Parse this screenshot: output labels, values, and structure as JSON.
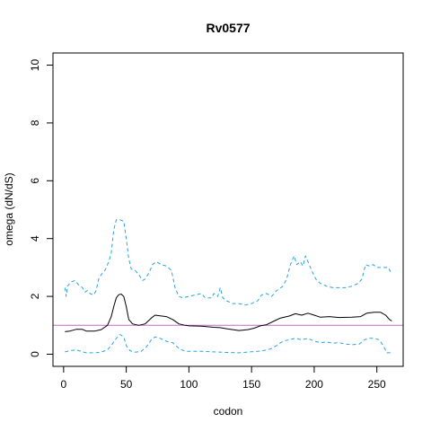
{
  "chart_data": {
    "type": "line",
    "title": "Rv0577",
    "xlabel": "codon",
    "ylabel": "omega (dN/dS)",
    "xlim": [
      -8.5,
      271
    ],
    "ylim": [
      -0.42,
      10.42
    ],
    "xticks": [
      0,
      50,
      100,
      150,
      200,
      250
    ],
    "yticks": [
      0,
      2,
      4,
      6,
      8,
      10
    ],
    "grid": false,
    "reference_line": {
      "y": 1,
      "color": "#cc66cc"
    },
    "colors": {
      "omega": "#000000",
      "bounds": "#29a3dd",
      "reference": "#cc66cc"
    },
    "series": [
      {
        "style": "solid",
        "color": "#000000",
        "points": [
          [
            1,
            0.78
          ],
          [
            5,
            0.8
          ],
          [
            10,
            0.86
          ],
          [
            15,
            0.86
          ],
          [
            18,
            0.8
          ],
          [
            25,
            0.8
          ],
          [
            30,
            0.85
          ],
          [
            35,
            1.0
          ],
          [
            38,
            1.3
          ],
          [
            40,
            1.65
          ],
          [
            42,
            1.95
          ],
          [
            44,
            2.06
          ],
          [
            46,
            2.08
          ],
          [
            48,
            2.0
          ],
          [
            50,
            1.65
          ],
          [
            52,
            1.2
          ],
          [
            55,
            1.05
          ],
          [
            60,
            1.0
          ],
          [
            65,
            1.05
          ],
          [
            70,
            1.25
          ],
          [
            73,
            1.35
          ],
          [
            77,
            1.33
          ],
          [
            82,
            1.3
          ],
          [
            87,
            1.2
          ],
          [
            92,
            1.05
          ],
          [
            97,
            1.0
          ],
          [
            100,
            0.98
          ],
          [
            110,
            0.97
          ],
          [
            120,
            0.93
          ],
          [
            125,
            0.92
          ],
          [
            130,
            0.88
          ],
          [
            135,
            0.85
          ],
          [
            140,
            0.82
          ],
          [
            147,
            0.85
          ],
          [
            152,
            0.9
          ],
          [
            157,
            0.98
          ],
          [
            162,
            1.02
          ],
          [
            168,
            1.15
          ],
          [
            173,
            1.25
          ],
          [
            180,
            1.32
          ],
          [
            185,
            1.4
          ],
          [
            190,
            1.35
          ],
          [
            195,
            1.42
          ],
          [
            200,
            1.35
          ],
          [
            205,
            1.28
          ],
          [
            212,
            1.3
          ],
          [
            220,
            1.27
          ],
          [
            230,
            1.28
          ],
          [
            237,
            1.3
          ],
          [
            242,
            1.42
          ],
          [
            248,
            1.45
          ],
          [
            253,
            1.45
          ],
          [
            257,
            1.35
          ],
          [
            260,
            1.2
          ],
          [
            262,
            1.15
          ]
        ]
      },
      {
        "style": "dashed",
        "color": "#29a3dd",
        "points": [
          [
            1,
            2.3
          ],
          [
            2,
            2.0
          ],
          [
            3,
            2.35
          ],
          [
            6,
            2.5
          ],
          [
            9,
            2.55
          ],
          [
            12,
            2.4
          ],
          [
            15,
            2.3
          ],
          [
            17,
            2.15
          ],
          [
            19,
            2.2
          ],
          [
            21,
            2.1
          ],
          [
            24,
            2.05
          ],
          [
            26,
            2.2
          ],
          [
            28,
            2.6
          ],
          [
            30,
            2.75
          ],
          [
            33,
            2.9
          ],
          [
            36,
            3.2
          ],
          [
            38,
            3.5
          ],
          [
            40,
            4.3
          ],
          [
            42,
            4.65
          ],
          [
            45,
            4.65
          ],
          [
            48,
            4.6
          ],
          [
            50,
            4.0
          ],
          [
            52,
            3.3
          ],
          [
            54,
            2.95
          ],
          [
            57,
            2.9
          ],
          [
            60,
            2.75
          ],
          [
            63,
            2.55
          ],
          [
            65,
            2.6
          ],
          [
            68,
            2.8
          ],
          [
            71,
            3.1
          ],
          [
            74,
            3.2
          ],
          [
            78,
            3.1
          ],
          [
            82,
            3.05
          ],
          [
            86,
            2.9
          ],
          [
            89,
            2.3
          ],
          [
            92,
            2.0
          ],
          [
            95,
            1.95
          ],
          [
            100,
            2.0
          ],
          [
            105,
            2.05
          ],
          [
            110,
            2.1
          ],
          [
            113,
            1.95
          ],
          [
            118,
            1.95
          ],
          [
            120,
            2.1
          ],
          [
            123,
            2.0
          ],
          [
            125,
            2.3
          ],
          [
            127,
            1.95
          ],
          [
            130,
            1.85
          ],
          [
            135,
            1.75
          ],
          [
            140,
            1.75
          ],
          [
            145,
            1.7
          ],
          [
            150,
            1.75
          ],
          [
            155,
            1.85
          ],
          [
            158,
            2.05
          ],
          [
            162,
            2.1
          ],
          [
            166,
            2.0
          ],
          [
            170,
            2.2
          ],
          [
            175,
            2.35
          ],
          [
            178,
            2.6
          ],
          [
            181,
            3.1
          ],
          [
            184,
            3.4
          ],
          [
            186,
            3.1
          ],
          [
            189,
            3.2
          ],
          [
            191,
            3.05
          ],
          [
            193,
            3.4
          ],
          [
            196,
            3.1
          ],
          [
            199,
            2.8
          ],
          [
            202,
            2.55
          ],
          [
            205,
            2.45
          ],
          [
            210,
            2.35
          ],
          [
            215,
            2.3
          ],
          [
            220,
            2.3
          ],
          [
            225,
            2.3
          ],
          [
            230,
            2.35
          ],
          [
            235,
            2.45
          ],
          [
            238,
            2.6
          ],
          [
            241,
            3.1
          ],
          [
            244,
            3.05
          ],
          [
            247,
            3.1
          ],
          [
            250,
            3.0
          ],
          [
            255,
            3.0
          ],
          [
            259,
            3.0
          ],
          [
            261,
            2.85
          ]
        ]
      },
      {
        "style": "dashed",
        "color": "#29a3dd",
        "points": [
          [
            1,
            0.08
          ],
          [
            5,
            0.12
          ],
          [
            10,
            0.15
          ],
          [
            14,
            0.1
          ],
          [
            18,
            0.05
          ],
          [
            25,
            0.05
          ],
          [
            30,
            0.07
          ],
          [
            35,
            0.15
          ],
          [
            38,
            0.3
          ],
          [
            42,
            0.55
          ],
          [
            45,
            0.68
          ],
          [
            48,
            0.6
          ],
          [
            50,
            0.3
          ],
          [
            53,
            0.12
          ],
          [
            57,
            0.07
          ],
          [
            62,
            0.1
          ],
          [
            66,
            0.25
          ],
          [
            70,
            0.5
          ],
          [
            73,
            0.6
          ],
          [
            77,
            0.55
          ],
          [
            82,
            0.45
          ],
          [
            87,
            0.4
          ],
          [
            92,
            0.2
          ],
          [
            97,
            0.1
          ],
          [
            103,
            0.1
          ],
          [
            110,
            0.1
          ],
          [
            120,
            0.08
          ],
          [
            130,
            0.06
          ],
          [
            140,
            0.05
          ],
          [
            148,
            0.08
          ],
          [
            155,
            0.1
          ],
          [
            160,
            0.13
          ],
          [
            165,
            0.18
          ],
          [
            170,
            0.3
          ],
          [
            175,
            0.45
          ],
          [
            180,
            0.5
          ],
          [
            185,
            0.55
          ],
          [
            190,
            0.5
          ],
          [
            195,
            0.55
          ],
          [
            200,
            0.45
          ],
          [
            205,
            0.4
          ],
          [
            210,
            0.42
          ],
          [
            215,
            0.38
          ],
          [
            220,
            0.4
          ],
          [
            225,
            0.35
          ],
          [
            230,
            0.33
          ],
          [
            236,
            0.35
          ],
          [
            240,
            0.5
          ],
          [
            244,
            0.55
          ],
          [
            248,
            0.55
          ],
          [
            252,
            0.5
          ],
          [
            255,
            0.3
          ],
          [
            258,
            0.05
          ],
          [
            262,
            0.05
          ]
        ]
      }
    ]
  }
}
